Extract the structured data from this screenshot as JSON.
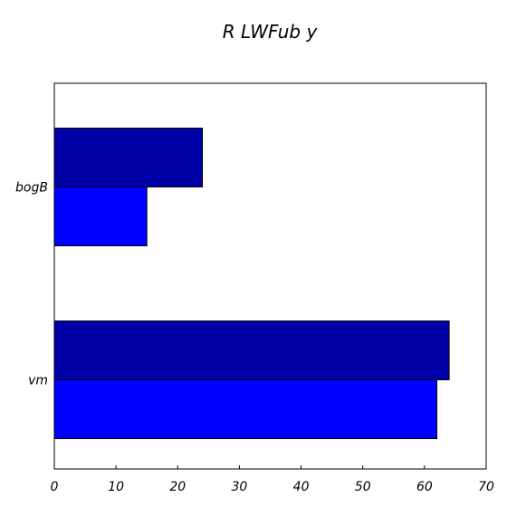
{
  "chart_data": {
    "type": "bar",
    "orientation": "horizontal",
    "title": "R LWFub y",
    "xlabel": "",
    "ylabel": "",
    "categories": [
      "vm",
      "bogB"
    ],
    "series": [
      {
        "values": [
          62,
          15
        ],
        "color": "#0000ff"
      },
      {
        "values": [
          64,
          24
        ],
        "color": "#0000a8"
      }
    ],
    "xlim": [
      0,
      70
    ],
    "xticks": [
      0,
      10,
      20,
      30,
      40,
      50,
      60,
      70
    ],
    "grid": false,
    "legend": "none"
  }
}
